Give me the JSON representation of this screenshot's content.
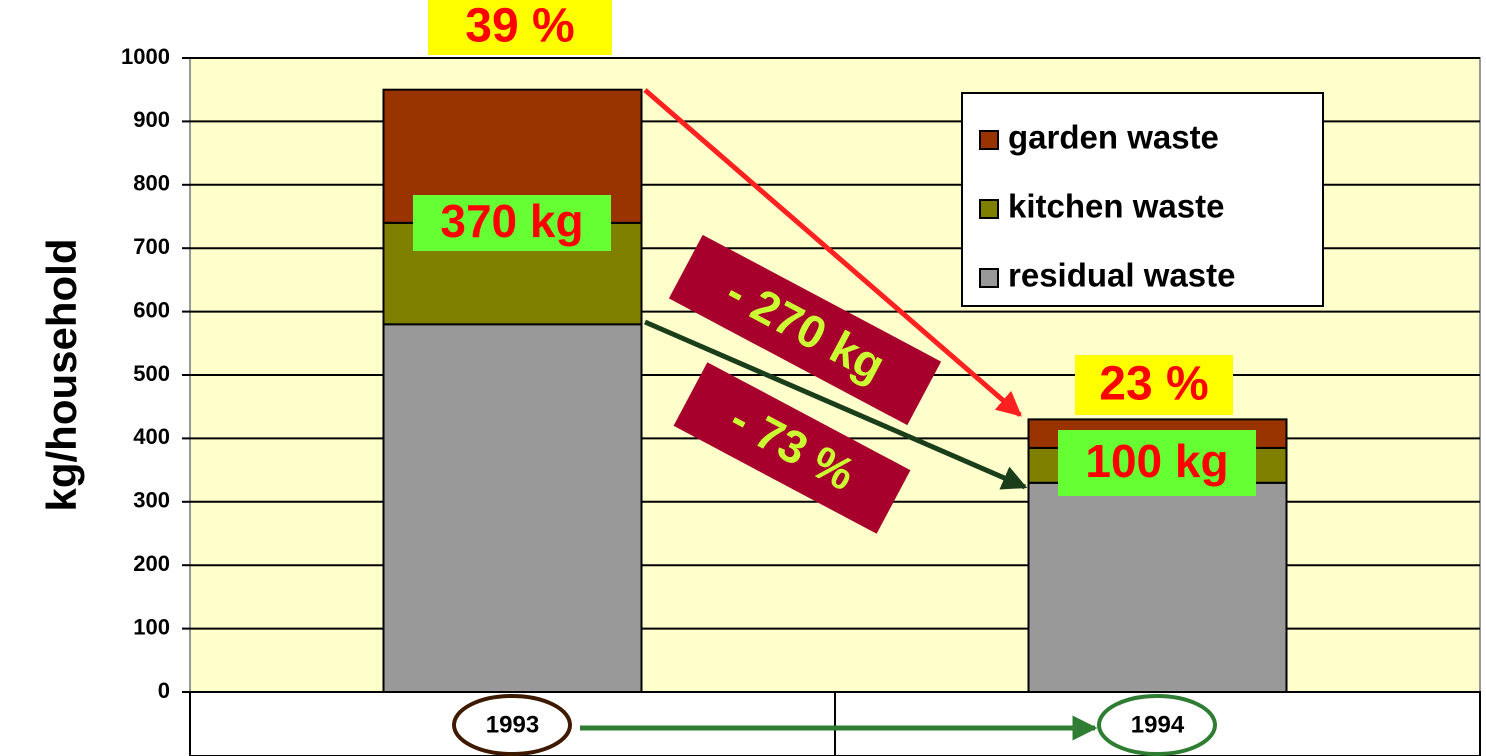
{
  "chart_data": {
    "type": "stacked_bar",
    "y_label": "kg/household",
    "categories": [
      "1993",
      "1994"
    ],
    "series": [
      {
        "name": "residual waste",
        "color": "#999999",
        "values": [
          580,
          330
        ]
      },
      {
        "name": "kitchen waste",
        "color": "#808000",
        "values": [
          160,
          55
        ]
      },
      {
        "name": "garden waste",
        "color": "#993300",
        "values": [
          210,
          45
        ]
      }
    ],
    "ylim": [
      0,
      1000
    ],
    "yticks": [
      0,
      100,
      200,
      300,
      400,
      500,
      600,
      700,
      800,
      900,
      1000
    ],
    "grid": true,
    "legend": "upper right",
    "annotations": [
      "39 %",
      "370 kg",
      "- 270 kg",
      "- 73 %",
      "23 %",
      "100 kg"
    ]
  }
}
